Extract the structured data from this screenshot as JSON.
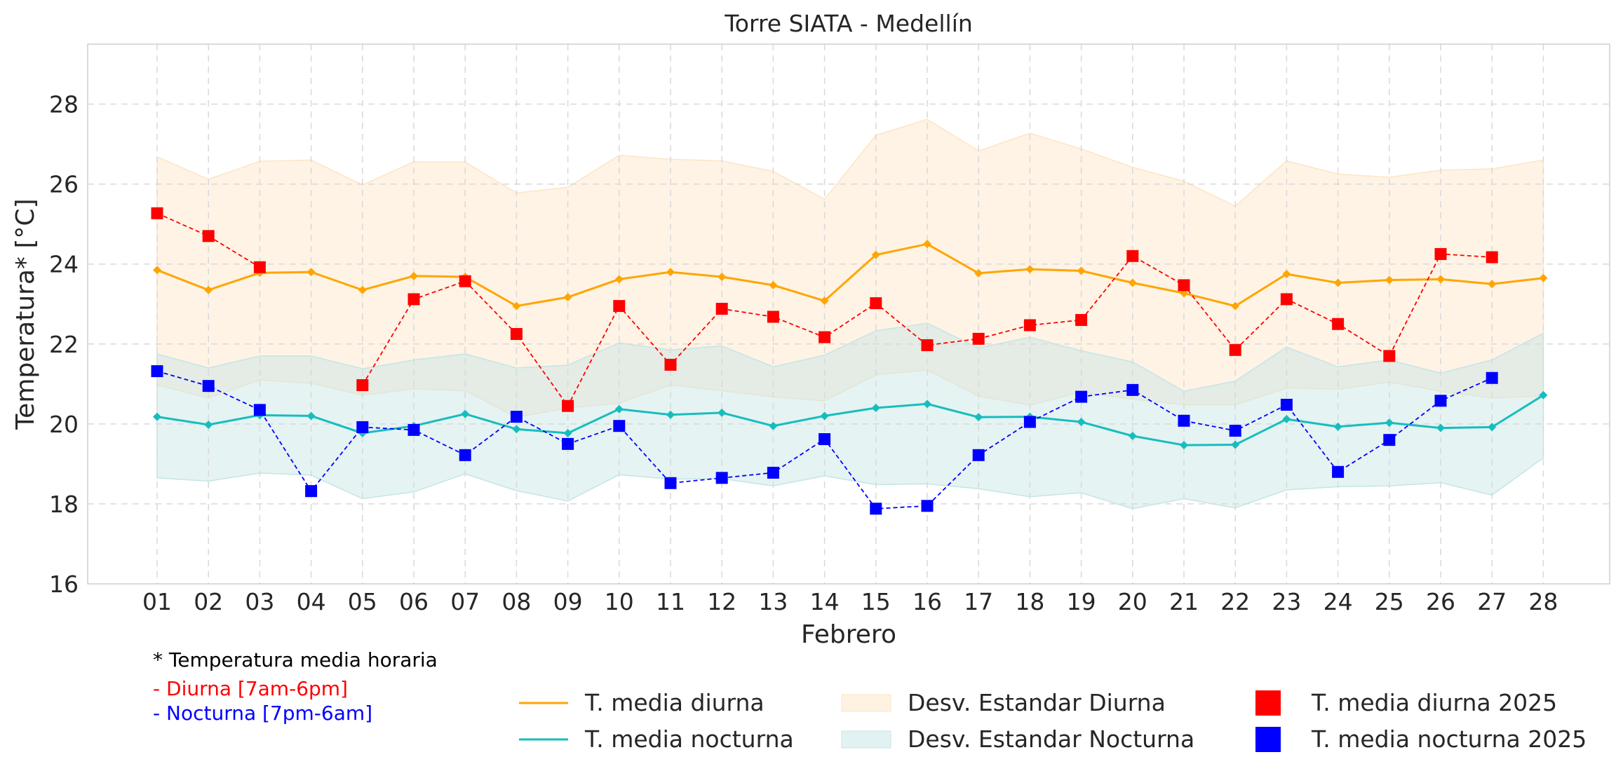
{
  "chart_data": {
    "type": "line",
    "title": "Torre SIATA - Medellín",
    "xlabel": "Febrero",
    "ylabel": "Temperatura* [°C]",
    "categories": [
      "01",
      "02",
      "03",
      "04",
      "05",
      "06",
      "07",
      "08",
      "09",
      "10",
      "11",
      "12",
      "13",
      "14",
      "15",
      "16",
      "17",
      "18",
      "19",
      "20",
      "21",
      "22",
      "23",
      "24",
      "25",
      "26",
      "27",
      "28"
    ],
    "ylim": [
      16,
      29.5
    ],
    "yticks": [
      "16",
      "18",
      "20",
      "22",
      "24",
      "26",
      "28"
    ],
    "grid": true,
    "series": [
      {
        "name": "T. media diurna",
        "kind": "line",
        "color": "#FFA500",
        "values": [
          23.85,
          23.35,
          23.78,
          23.8,
          23.35,
          23.7,
          23.68,
          22.95,
          23.17,
          23.62,
          23.8,
          23.68,
          23.47,
          23.08,
          24.23,
          24.5,
          23.77,
          23.87,
          23.83,
          23.53,
          23.27,
          22.95,
          23.75,
          23.53,
          23.6,
          23.62,
          23.5,
          23.65
        ]
      },
      {
        "name": "T. media nocturna",
        "kind": "line",
        "color": "#17BDBD",
        "values": [
          20.18,
          19.98,
          20.22,
          20.2,
          19.77,
          19.95,
          20.25,
          19.87,
          19.77,
          20.37,
          20.23,
          20.28,
          19.95,
          20.2,
          20.4,
          20.5,
          20.17,
          20.18,
          20.05,
          19.7,
          19.47,
          19.48,
          20.12,
          19.93,
          20.03,
          19.9,
          19.92,
          20.72
        ]
      },
      {
        "name": "Desv. Estandar Diurna",
        "kind": "band",
        "color": "#FDE5C5",
        "upper": [
          26.68,
          26.12,
          26.57,
          26.6,
          25.98,
          26.56,
          26.55,
          25.78,
          25.92,
          26.72,
          26.62,
          26.58,
          26.32,
          25.62,
          27.22,
          27.62,
          26.83,
          27.27,
          26.88,
          26.42,
          26.07,
          25.45,
          26.58,
          26.25,
          26.17,
          26.35,
          26.38,
          26.6
        ],
        "lower": [
          20.98,
          20.65,
          21.1,
          21.02,
          20.72,
          20.88,
          20.83,
          20.17,
          20.4,
          20.52,
          20.98,
          20.83,
          20.68,
          20.58,
          21.23,
          21.35,
          20.7,
          20.47,
          20.8,
          20.62,
          20.48,
          20.48,
          20.9,
          20.87,
          21.05,
          20.82,
          20.65,
          20.7
        ]
      },
      {
        "name": "Desv. Estandar Nocturna",
        "kind": "band",
        "color": "#C5E5E5",
        "upper": [
          21.75,
          21.4,
          21.7,
          21.7,
          21.38,
          21.6,
          21.75,
          21.4,
          21.47,
          22.03,
          21.85,
          21.95,
          21.43,
          21.72,
          22.33,
          22.52,
          21.9,
          22.17,
          21.83,
          21.55,
          20.82,
          21.07,
          21.92,
          21.43,
          21.6,
          21.27,
          21.6,
          22.27
        ],
        "lower": [
          18.65,
          18.57,
          18.77,
          18.72,
          18.13,
          18.3,
          18.75,
          18.33,
          18.07,
          18.73,
          18.62,
          18.63,
          18.45,
          18.7,
          18.48,
          18.5,
          18.38,
          18.18,
          18.28,
          17.88,
          18.13,
          17.9,
          18.35,
          18.43,
          18.45,
          18.53,
          18.22,
          19.15
        ]
      },
      {
        "name": "T. media diurna 2025",
        "kind": "markers",
        "color": "#FF0000",
        "values": [
          25.27,
          24.7,
          23.92,
          null,
          20.97,
          23.12,
          23.57,
          22.25,
          20.45,
          22.95,
          21.48,
          22.88,
          22.68,
          22.17,
          23.02,
          21.97,
          22.13,
          22.47,
          22.6,
          24.2,
          23.47,
          21.85,
          23.12,
          22.5,
          21.7,
          24.25,
          24.17,
          null
        ]
      },
      {
        "name": "T. media nocturna 2025",
        "kind": "markers",
        "color": "#0000FF",
        "values": [
          21.32,
          20.95,
          20.35,
          18.32,
          19.92,
          19.85,
          19.22,
          20.18,
          19.5,
          19.95,
          18.52,
          18.65,
          18.78,
          19.62,
          17.88,
          17.95,
          19.22,
          20.05,
          20.68,
          20.85,
          20.08,
          19.83,
          20.48,
          18.8,
          19.6,
          20.58,
          21.15,
          null
        ]
      }
    ],
    "legend_placement": "bottom"
  },
  "notes": {
    "line1": "* Temperatura media horaria",
    "line2": "- Diurna [7am-6pm]",
    "line3": "- Nocturna [7pm-6am]",
    "line2_color": "#FF0000",
    "line3_color": "#0000FF"
  }
}
